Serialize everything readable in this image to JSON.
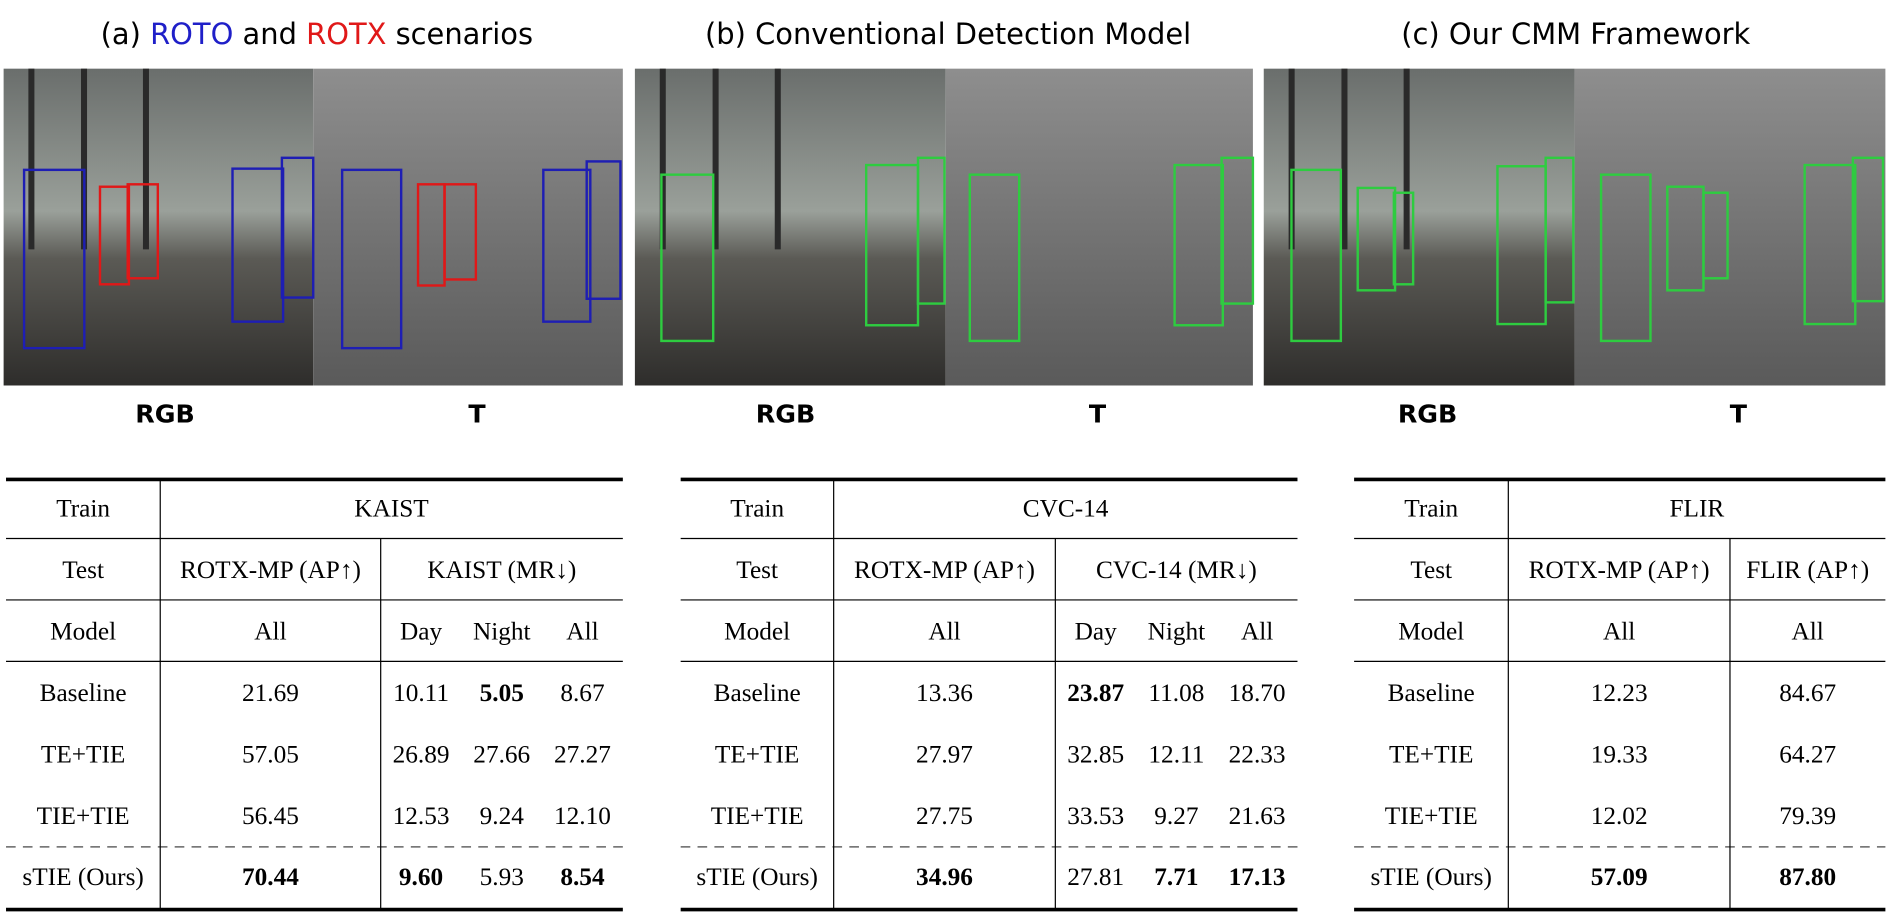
{
  "panels": [
    {
      "title": [
        {
          "text": "(a) "
        },
        {
          "text": "ROTO",
          "color": "#1f1fc8"
        },
        {
          "text": " and "
        },
        {
          "text": "ROTX",
          "color": "#e01818"
        },
        {
          "text": " scenarios"
        }
      ],
      "labels": [
        "RGB",
        "T"
      ]
    },
    {
      "title": [
        {
          "text": "(b) Conventional Detection Model"
        }
      ],
      "labels": [
        "RGB",
        "T"
      ]
    },
    {
      "title": [
        {
          "text": "(c) Our CMM Framework"
        }
      ],
      "labels": [
        "RGB",
        "T"
      ]
    }
  ],
  "tables": [
    {
      "header": [
        [
          "Train",
          "KAIST"
        ],
        [
          "Test",
          "ROTX-MP (AP↑)",
          "KAIST (MR↓)"
        ],
        [
          "Model",
          "All",
          "Day",
          "Night",
          "All"
        ]
      ],
      "rows": [
        [
          "Baseline",
          "21.69",
          "10.11",
          "5.05",
          "8.67"
        ],
        [
          "TE+TIE",
          "57.05",
          "26.89",
          "27.66",
          "27.27"
        ],
        [
          "TIE+TIE",
          "56.45",
          "12.53",
          "9.24",
          "12.10"
        ],
        [
          "sTIE (Ours)",
          "70.44",
          "9.60",
          "5.93",
          "8.54"
        ]
      ],
      "bold": [
        [
          0,
          3
        ],
        [
          3,
          1
        ],
        [
          3,
          2
        ],
        [
          3,
          4
        ]
      ]
    },
    {
      "header": [
        [
          "Train",
          "CVC-14"
        ],
        [
          "Test",
          "ROTX-MP (AP↑)",
          "CVC-14 (MR↓)"
        ],
        [
          "Model",
          "All",
          "Day",
          "Night",
          "All"
        ]
      ],
      "rows": [
        [
          "Baseline",
          "13.36",
          "23.87",
          "11.08",
          "18.70"
        ],
        [
          "TE+TIE",
          "27.97",
          "32.85",
          "12.11",
          "22.33"
        ],
        [
          "TIE+TIE",
          "27.75",
          "33.53",
          "9.27",
          "21.63"
        ],
        [
          "sTIE (Ours)",
          "34.96",
          "27.81",
          "7.71",
          "17.13"
        ]
      ],
      "bold": [
        [
          0,
          2
        ],
        [
          3,
          1
        ],
        [
          3,
          3
        ],
        [
          3,
          4
        ]
      ]
    },
    {
      "header": [
        [
          "Train",
          "FLIR"
        ],
        [
          "Test",
          "ROTX-MP (AP↑)",
          "FLIR (AP↑)"
        ],
        [
          "Model",
          "All",
          "All"
        ]
      ],
      "rows": [
        [
          "Baseline",
          "12.23",
          "84.67"
        ],
        [
          "TE+TIE",
          "19.33",
          "64.27"
        ],
        [
          "TIE+TIE",
          "12.02",
          "79.39"
        ],
        [
          "sTIE (Ours)",
          "57.09",
          "87.80"
        ]
      ],
      "bold": [
        [
          3,
          1
        ],
        [
          3,
          2
        ]
      ]
    }
  ]
}
